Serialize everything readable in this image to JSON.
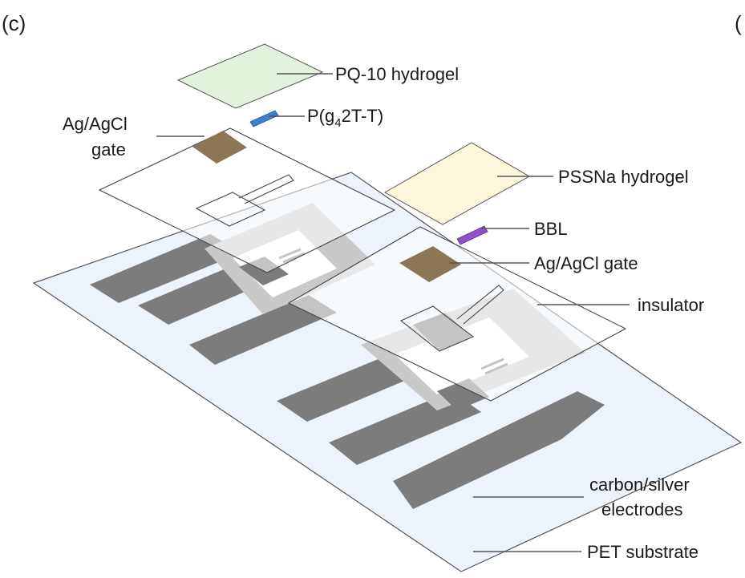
{
  "panel_label": "(c)",
  "panel_label_right": "(",
  "labels": {
    "pq10_hydrogel": "PQ-10 hydrogel",
    "pg42tt_prefix": "P(g",
    "pg42tt_sub": "4",
    "pg42tt_suffix": "2T-T)",
    "agagcl_gate_left_line1": "Ag/AgCl",
    "agagcl_gate_left_line2": "gate",
    "pssna_hydrogel": "PSSNa hydrogel",
    "bbl": "BBL",
    "agagcl_gate_right": "Ag/AgCl gate",
    "insulator": "insulator",
    "electrodes_line1": "carbon/silver",
    "electrodes_line2": "electrodes",
    "pet_substrate": "PET substrate"
  },
  "colors": {
    "pq10_hydrogel": "#e3f2dd",
    "pssna_hydrogel": "#fdf8dc",
    "pg42tt": "#3f7fd0",
    "bbl": "#8b54c8",
    "agagcl_gate": "#8b7655",
    "electrode_dark": "#7c7c7c",
    "electrode_light": "#c9c9c9",
    "pet_substrate": "#edf3fa",
    "insulator": "#ffffff"
  }
}
